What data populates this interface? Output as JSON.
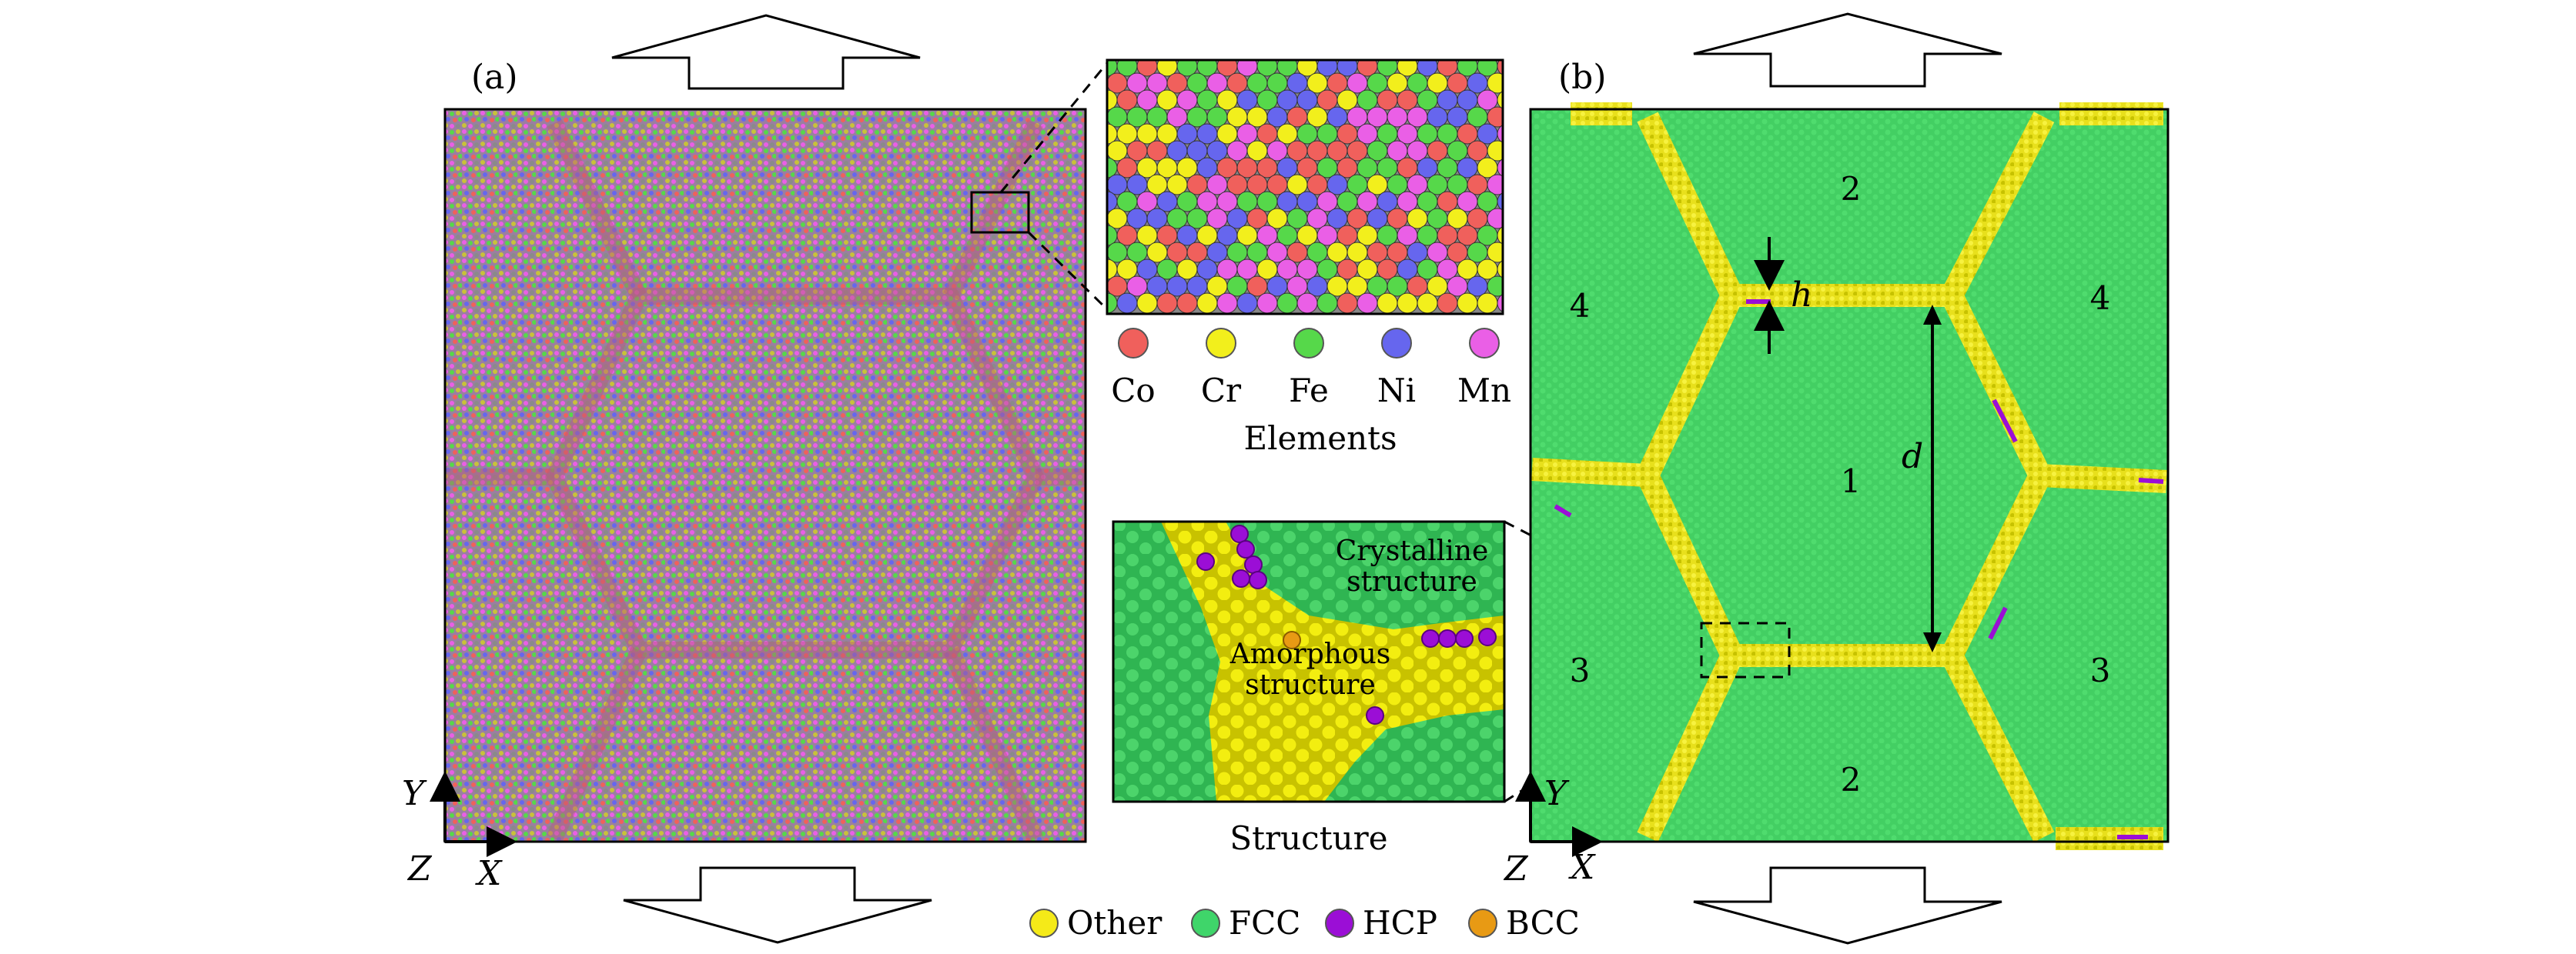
{
  "panels": {
    "a": {
      "label": "(a)"
    },
    "b": {
      "label": "(b)",
      "grain_numbers": [
        "1",
        "2",
        "2",
        "3",
        "3",
        "4",
        "4"
      ],
      "symbol_h": "h",
      "symbol_d": "d"
    }
  },
  "axes": {
    "y": "Y",
    "z": "Z",
    "x": "X"
  },
  "elements": {
    "title": "Elements",
    "items": [
      {
        "name": "Co",
        "color": "#f0605c"
      },
      {
        "name": "Cr",
        "color": "#f2ef1c"
      },
      {
        "name": "Fe",
        "color": "#56d84a"
      },
      {
        "name": "Ni",
        "color": "#6666ee"
      },
      {
        "name": "Mn",
        "color": "#ea5fe6"
      }
    ]
  },
  "structure_inset": {
    "title": "Structure",
    "crystalline_text_1": "Crystalline",
    "crystalline_text_2": "structure",
    "amorphous_text_1": "Amorphous",
    "amorphous_text_2": "structure"
  },
  "structure_legend": [
    {
      "name": "Other",
      "color": "#f5ea18"
    },
    {
      "name": "FCC",
      "color": "#3fd56a"
    },
    {
      "name": "HCP",
      "color": "#9b0ed6"
    },
    {
      "name": "BCC",
      "color": "#e89a14"
    }
  ]
}
